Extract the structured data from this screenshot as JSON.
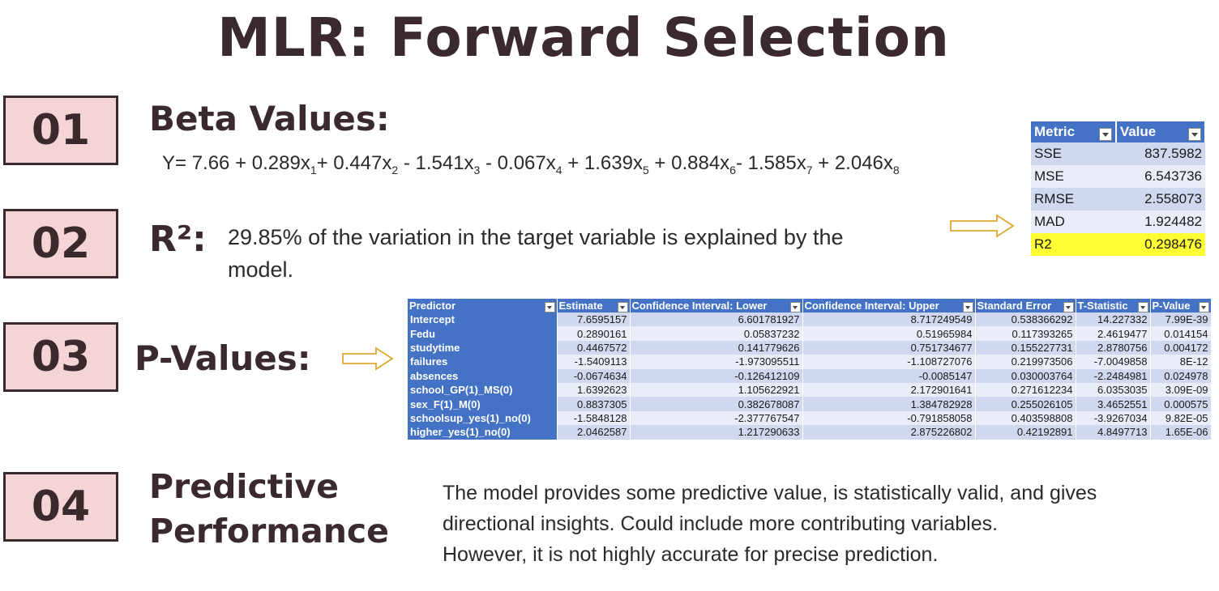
{
  "title": "MLR: Forward Selection",
  "sections": [
    {
      "number": "01",
      "heading": "Beta Values:"
    },
    {
      "number": "02",
      "heading": "R²:",
      "text_line1": "29.85% of the variation in the target variable is explained by the",
      "text_line2": "model."
    },
    {
      "number": "03",
      "heading": "P-Values:"
    },
    {
      "number": "04",
      "heading_line1": "Predictive",
      "heading_line2": "Performance",
      "text_line1": "The model provides some predictive value, is statistically valid, and gives",
      "text_line2": "directional insights. Could include more contributing variables.",
      "text_line3": "However, it is not highly accurate for precise prediction."
    }
  ],
  "equation": {
    "prefix": "Y= 7.66 + 0.289x",
    "s1": "1",
    "t1": "+ 0.447x",
    "s2": "2",
    "t2": " - 1.541x",
    "s3": "3",
    "t3": " - 0.067x",
    "s4": "4",
    "t4": " + 1.639x",
    "s5": "5",
    "t5": " + 0.884x",
    "s6": "6",
    "t6": "- 1.585x",
    "s7": "7",
    "t7": " + 2.046x",
    "s8": "8"
  },
  "metric_table": {
    "headers": [
      "Metric",
      "Value"
    ],
    "rows": [
      [
        "SSE",
        "837.5982"
      ],
      [
        "MSE",
        "6.543736"
      ],
      [
        "RMSE",
        "2.558073"
      ],
      [
        "MAD",
        "1.924482"
      ],
      [
        "R2",
        "0.298476"
      ]
    ]
  },
  "predictor_table": {
    "headers": [
      "Predictor",
      "Estimate",
      "Confidence Interval: Lower",
      "Confidence Interval: Upper",
      "Standard Error",
      "T-Statistic",
      "P-Value"
    ],
    "rows": [
      [
        "Intercept",
        "7.6595157",
        "6.601781927",
        "8.717249549",
        "0.538366292",
        "14.227332",
        "7.99E-39"
      ],
      [
        "Fedu",
        "0.2890161",
        "0.05837232",
        "0.51965984",
        "0.117393265",
        "2.4619477",
        "0.014154"
      ],
      [
        "studytime",
        "0.4467572",
        "0.141779626",
        "0.751734677",
        "0.155227731",
        "2.8780756",
        "0.004172"
      ],
      [
        "failures",
        "-1.5409113",
        "-1.973095511",
        "-1.108727076",
        "0.219973506",
        "-7.0049858",
        "8E-12"
      ],
      [
        "absences",
        "-0.0674634",
        "-0.126412109",
        "-0.0085147",
        "0.030003764",
        "-2.2484981",
        "0.024978"
      ],
      [
        "school_GP(1)_MS(0)",
        "1.6392623",
        "1.105622921",
        "2.172901641",
        "0.271612234",
        "6.0353035",
        "3.09E-09"
      ],
      [
        "sex_F(1)_M(0)",
        "0.8837305",
        "0.382678087",
        "1.384782928",
        "0.255026105",
        "3.4652551",
        "0.000575"
      ],
      [
        "schoolsup_yes(1)_no(0)",
        "-1.5848128",
        "-2.377767547",
        "-0.791858058",
        "0.403598808",
        "-3.9267034",
        "9.82E-05"
      ],
      [
        "higher_yes(1)_no(0)",
        "2.0462587",
        "1.217290633",
        "2.875226802",
        "0.42192891",
        "4.8497713",
        "1.65E-06"
      ]
    ]
  }
}
